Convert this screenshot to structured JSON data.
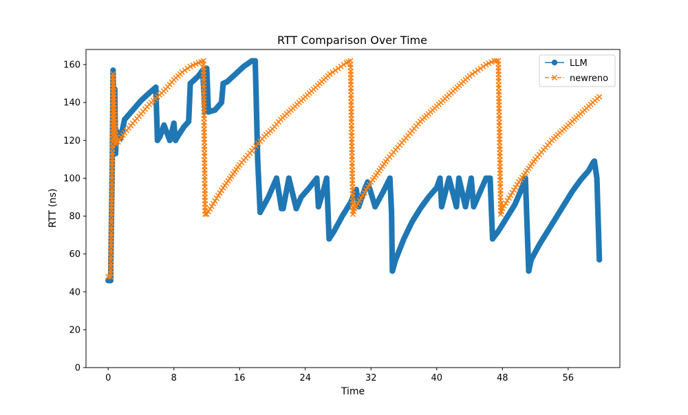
{
  "chart_data": {
    "type": "line",
    "title": "RTT Comparison Over Time",
    "xlabel": "Time",
    "ylabel": "RTT (ns)",
    "xlim": [
      -2.7,
      62.3
    ],
    "ylim": [
      0,
      168
    ],
    "xticks": [
      0,
      8,
      16,
      24,
      32,
      40,
      48,
      56
    ],
    "yticks": [
      0,
      20,
      40,
      60,
      80,
      100,
      120,
      140,
      160
    ],
    "grid": false,
    "legend_position": "top-right",
    "series": [
      {
        "name": "LLM",
        "color": "#1f77b4",
        "marker": "circle",
        "linestyle": "solid",
        "x": [
          0,
          0.3,
          0.5,
          0.6,
          0.7,
          0.8,
          0.9,
          1.0,
          1.5,
          2.0,
          3.0,
          4.0,
          5.0,
          5.8,
          6.0,
          6.3,
          6.8,
          7.5,
          8.0,
          8.2,
          8.6,
          9.2,
          9.8,
          10.0,
          10.5,
          11.0,
          11.5,
          11.8,
          12.0,
          12.2,
          13.0,
          13.8,
          14.0,
          14.5,
          15.5,
          16.5,
          17.5,
          17.9,
          18.0,
          18.2,
          18.5,
          19.5,
          20.5,
          21.1,
          21.3,
          22.0,
          22.9,
          23.5,
          24.5,
          25.4,
          25.6,
          26.3,
          26.6,
          26.9,
          27.5,
          28.5,
          29.5,
          30.2,
          30.5,
          31.3,
          31.6,
          32.5,
          33.5,
          34.3,
          34.5,
          34.6,
          35.0,
          36.0,
          37.0,
          38.0,
          39.0,
          40.0,
          40.4,
          40.6,
          41.5,
          42.4,
          42.7,
          43.5,
          44.2,
          44.5,
          46.0,
          46.5,
          46.8,
          47.5,
          48.5,
          49.5,
          50.2,
          50.8,
          51.0,
          51.2,
          51.5,
          52.5,
          53.5,
          54.5,
          55.5,
          56.5,
          57.5,
          58.5,
          59.0,
          59.2,
          59.5,
          59.8
        ],
        "y": [
          46,
          46,
          110,
          157,
          130,
          147,
          113,
          125,
          121,
          131,
          136,
          141,
          145,
          148,
          120,
          122,
          128,
          120,
          129,
          120,
          123,
          127,
          130,
          150,
          152,
          154,
          157,
          135,
          158,
          135,
          136,
          140,
          150,
          151,
          155,
          159,
          162,
          162,
          146,
          110,
          82,
          90,
          100,
          84,
          84,
          100,
          84,
          90,
          95,
          100,
          85,
          95,
          100,
          68,
          72,
          80,
          87,
          94,
          85,
          95,
          98,
          85,
          93,
          100,
          82,
          51,
          57,
          68,
          77,
          84,
          90,
          95,
          100,
          85,
          100,
          85,
          100,
          85,
          100,
          85,
          100,
          100,
          68,
          72,
          79,
          86,
          93,
          100,
          75,
          51,
          57,
          65,
          72,
          79,
          86,
          93,
          99,
          104,
          108,
          109,
          100,
          57
        ]
      },
      {
        "name": "newreno",
        "color": "#ff7f0e",
        "marker": "x",
        "linestyle": "dashed",
        "x": [
          0,
          0.3,
          0.5,
          0.6,
          0.8,
          1.0,
          2.0,
          3.0,
          4.0,
          5.0,
          6.0,
          7.0,
          8.0,
          9.0,
          10.0,
          11.0,
          11.6,
          11.8,
          12.0,
          13.0,
          14.0,
          15.0,
          16.0,
          17.0,
          18.0,
          19.0,
          20.0,
          21.0,
          22.0,
          23.0,
          24.0,
          25.0,
          26.0,
          27.0,
          28.0,
          29.0,
          29.5,
          29.8,
          30.0,
          31.0,
          32.0,
          33.0,
          34.0,
          35.0,
          36.0,
          37.0,
          38.0,
          39.0,
          40.0,
          41.0,
          42.0,
          43.0,
          44.0,
          45.0,
          46.0,
          47.0,
          47.5,
          47.8,
          48.0,
          49.0,
          50.0,
          51.0,
          52.0,
          53.0,
          54.0,
          55.0,
          56.0,
          57.0,
          58.0,
          59.0,
          59.8
        ],
        "y": [
          48,
          48,
          110,
          155,
          130,
          118,
          124,
          129,
          134,
          139,
          143,
          147,
          152,
          156,
          159,
          161,
          162,
          81,
          81,
          88,
          95,
          101,
          107,
          112,
          117,
          122,
          126,
          131,
          135,
          139,
          143,
          147,
          151,
          155,
          158,
          161,
          162,
          81,
          84,
          91,
          98,
          104,
          110,
          115,
          120,
          125,
          130,
          134,
          138,
          142,
          146,
          150,
          154,
          157,
          160,
          162,
          162,
          81,
          84,
          91,
          98,
          104,
          110,
          115,
          120,
          124,
          128,
          132,
          136,
          140,
          143
        ]
      }
    ]
  }
}
